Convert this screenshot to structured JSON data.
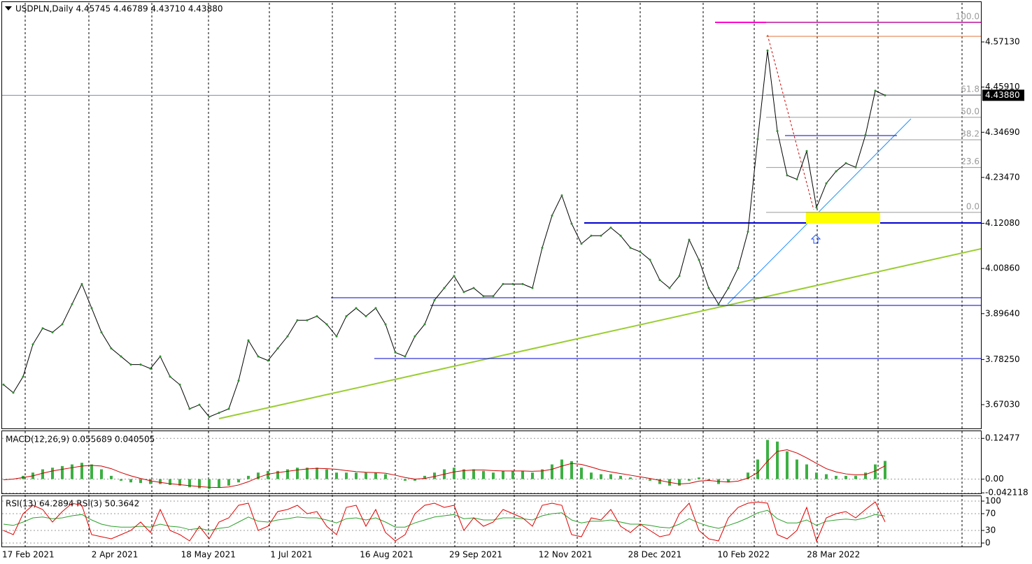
{
  "chart_data": [
    {
      "type": "line",
      "title": "USDPLN,Daily  4.45745 4.46789 4.43710 4.43880",
      "color": "#000000",
      "values": [
        3.72,
        3.7,
        3.74,
        3.82,
        3.86,
        3.85,
        3.87,
        3.92,
        3.97,
        3.91,
        3.85,
        3.81,
        3.79,
        3.77,
        3.77,
        3.76,
        3.79,
        3.74,
        3.72,
        3.66,
        3.67,
        3.64,
        3.65,
        3.66,
        3.73,
        3.83,
        3.79,
        3.78,
        3.81,
        3.84,
        3.88,
        3.88,
        3.89,
        3.87,
        3.84,
        3.89,
        3.91,
        3.89,
        3.91,
        3.87,
        3.8,
        3.79,
        3.84,
        3.87,
        3.93,
        3.96,
        3.99,
        3.95,
        3.96,
        3.94,
        3.94,
        3.97,
        3.97,
        3.97,
        3.96,
        4.06,
        4.14,
        4.19,
        4.12,
        4.07,
        4.09,
        4.09,
        4.11,
        4.09,
        4.06,
        4.05,
        4.03,
        3.98,
        3.96,
        3.99,
        4.08,
        4.03,
        3.96,
        3.92,
        3.96,
        4.01,
        4.1,
        4.33,
        4.55,
        4.35,
        4.24,
        4.23,
        4.3,
        4.16,
        4.22,
        4.25,
        4.27,
        4.26,
        4.34,
        4.45,
        4.4388
      ],
      "x_labels": [
        "17 Feb 2021",
        "2 Apr 2021",
        "18 May 2021",
        "1 Jul 2021",
        "16 Aug 2021",
        "29 Sep 2021",
        "12 Nov 2021",
        "28 Dec 2021",
        "10 Feb 2022",
        "28 Mar 2022"
      ],
      "ylim": [
        3.6113,
        4.6685
      ],
      "yticks": [
        {
          "value": 3.6703,
          "label": "3.67030"
        },
        {
          "value": 3.7825,
          "label": "3.78250"
        },
        {
          "value": 3.8964,
          "label": "3.89640"
        },
        {
          "value": 4.0086,
          "label": "4.00860"
        },
        {
          "value": 4.1208,
          "label": "4.12080"
        },
        {
          "value": 4.2347,
          "label": "4.23470"
        },
        {
          "value": 4.3469,
          "label": "4.34690"
        },
        {
          "value": 4.4591,
          "label": "4.45910"
        },
        {
          "value": 4.5713,
          "label": "4.57130"
        }
      ],
      "last_price": {
        "value": 4.4388,
        "label": "4.43880"
      },
      "fib_high": 4.62,
      "fib_low": 4.148,
      "fib_levels": [
        {
          "value": 100,
          "label": "100.0"
        },
        {
          "value": 61.8,
          "label": "61.8"
        },
        {
          "value": 50,
          "label": "50.0"
        },
        {
          "value": 38.2,
          "label": "38.2"
        },
        {
          "value": 23.6,
          "label": "23.6"
        },
        {
          "value": 0,
          "label": "0.0"
        }
      ]
    },
    {
      "type": "macd",
      "title": "MACD(12,26,9) 0.055689 0.040505",
      "ylim": [
        -0.0438,
        0.1467
      ],
      "yticks": [
        0.12477,
        {
          "value": 0,
          "label": "0.00"
        },
        -0.042118
      ],
      "series": [
        {
          "color": "#3cb043",
          "values": [
            0.0,
            0.0,
            0.01,
            0.02,
            0.03,
            0.035,
            0.04,
            0.045,
            0.05,
            0.045,
            0.03,
            0.01,
            -0.005,
            -0.01,
            -0.012,
            -0.015,
            -0.015,
            -0.018,
            -0.02,
            -0.025,
            -0.028,
            -0.03,
            -0.025,
            -0.02,
            -0.01,
            0.01,
            0.02,
            0.025,
            0.025,
            0.03,
            0.035,
            0.035,
            0.035,
            0.03,
            0.02,
            0.02,
            0.02,
            0.02,
            0.02,
            0.015,
            0.0,
            -0.005,
            -0.005,
            0.01,
            0.02,
            0.03,
            0.035,
            0.03,
            0.03,
            0.025,
            0.02,
            0.025,
            0.025,
            0.025,
            0.02,
            0.03,
            0.045,
            0.06,
            0.055,
            0.035,
            0.02,
            0.015,
            0.015,
            0.01,
            0.005,
            0.0,
            -0.005,
            -0.015,
            -0.02,
            -0.02,
            -0.005,
            0.005,
            -0.005,
            -0.015,
            -0.01,
            0.0,
            0.02,
            0.06,
            0.12,
            0.115,
            0.085,
            0.06,
            0.045,
            0.02,
            0.015,
            0.01,
            0.01,
            0.01,
            0.02,
            0.045,
            0.0557
          ]
        },
        {
          "color": "#cc0000",
          "values": [
            -0.002,
            0.0,
            0.005,
            0.01,
            0.018,
            0.025,
            0.03,
            0.035,
            0.04,
            0.042,
            0.04,
            0.032,
            0.02,
            0.01,
            0.002,
            -0.005,
            -0.01,
            -0.014,
            -0.017,
            -0.02,
            -0.023,
            -0.025,
            -0.026,
            -0.024,
            -0.018,
            -0.008,
            0.005,
            0.015,
            0.02,
            0.024,
            0.028,
            0.031,
            0.033,
            0.032,
            0.03,
            0.026,
            0.023,
            0.021,
            0.02,
            0.018,
            0.012,
            0.005,
            0.0,
            0.002,
            0.008,
            0.015,
            0.022,
            0.026,
            0.028,
            0.028,
            0.026,
            0.025,
            0.025,
            0.025,
            0.024,
            0.025,
            0.03,
            0.04,
            0.048,
            0.045,
            0.037,
            0.028,
            0.022,
            0.017,
            0.012,
            0.007,
            0.002,
            -0.004,
            -0.01,
            -0.015,
            -0.013,
            -0.006,
            -0.004,
            -0.007,
            -0.009,
            -0.006,
            0.003,
            0.02,
            0.055,
            0.085,
            0.09,
            0.08,
            0.065,
            0.048,
            0.032,
            0.022,
            0.016,
            0.013,
            0.014,
            0.025,
            0.0405
          ]
        }
      ]
    },
    {
      "type": "rsi",
      "title": "RSI(13) 64.2894  RSI(3) 50.3642",
      "ylim": [
        -10,
        115
      ],
      "yticks": [
        100,
        70,
        30,
        0
      ],
      "series": [
        {
          "color": "#2ca02c",
          "values": [
            45,
            42,
            50,
            60,
            62,
            58,
            60,
            65,
            68,
            55,
            45,
            40,
            38,
            38,
            40,
            38,
            45,
            40,
            38,
            32,
            35,
            30,
            35,
            38,
            50,
            62,
            52,
            50,
            55,
            58,
            62,
            60,
            60,
            55,
            48,
            58,
            60,
            55,
            60,
            50,
            38,
            38,
            48,
            55,
            62,
            65,
            68,
            58,
            60,
            55,
            55,
            60,
            60,
            58,
            55,
            65,
            70,
            72,
            55,
            48,
            52,
            52,
            55,
            50,
            45,
            45,
            42,
            38,
            36,
            45,
            58,
            48,
            40,
            35,
            42,
            50,
            60,
            72,
            78,
            58,
            48,
            48,
            55,
            42,
            52,
            55,
            57,
            55,
            60,
            68,
            64.2894
          ]
        },
        {
          "color": "#e00000",
          "values": [
            30,
            20,
            70,
            90,
            80,
            50,
            75,
            95,
            90,
            20,
            15,
            10,
            20,
            30,
            50,
            25,
            80,
            30,
            20,
            5,
            40,
            10,
            50,
            60,
            90,
            95,
            30,
            40,
            75,
            80,
            90,
            70,
            75,
            40,
            20,
            85,
            90,
            40,
            80,
            25,
            5,
            20,
            70,
            90,
            95,
            85,
            90,
            30,
            60,
            40,
            50,
            80,
            70,
            60,
            40,
            90,
            95,
            90,
            20,
            15,
            60,
            55,
            80,
            40,
            25,
            45,
            30,
            15,
            20,
            70,
            95,
            30,
            10,
            5,
            60,
            85,
            95,
            98,
            95,
            20,
            10,
            30,
            85,
            5,
            60,
            70,
            75,
            60,
            80,
            98,
            50.3642
          ]
        }
      ]
    }
  ]
}
